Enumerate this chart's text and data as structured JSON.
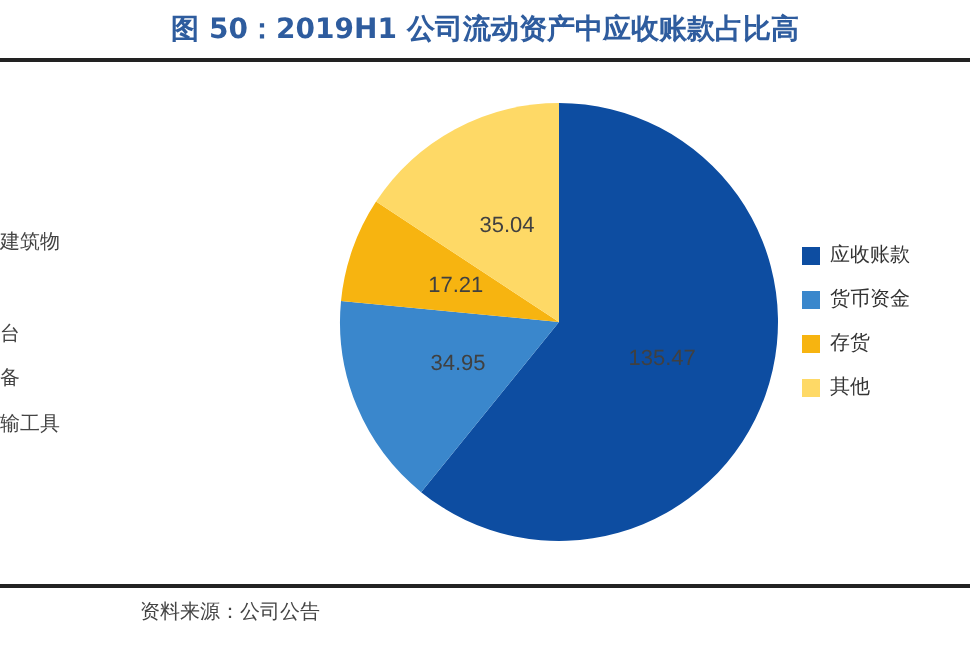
{
  "chart_data": {
    "type": "pie",
    "title": "图 50：2019H1 公司流动资产中应收账款占比高",
    "categories": [
      "应收账款",
      "货币资金",
      "存货",
      "其他"
    ],
    "values": [
      135.47,
      34.95,
      17.21,
      35.04
    ],
    "colors": [
      "#0d4da1",
      "#3a87cc",
      "#f7b410",
      "#fed966"
    ],
    "data_labels": true,
    "legend": "right",
    "annotations": [
      "建筑物",
      "台",
      "备",
      "输工具",
      "资料来源：公司公告"
    ]
  }
}
